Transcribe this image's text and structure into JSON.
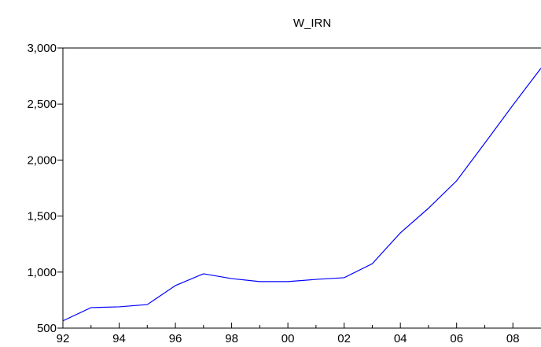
{
  "chart_data": {
    "type": "line",
    "title": "W_IRN",
    "x": [
      1992,
      1993,
      1994,
      1995,
      1996,
      1997,
      1998,
      1999,
      2000,
      2001,
      2002,
      2003,
      2004,
      2005,
      2006,
      2007,
      2008,
      2009
    ],
    "series": [
      {
        "name": "W_IRN",
        "color": "#0000ff",
        "values": [
          565,
          683,
          690,
          710,
          880,
          985,
          942,
          915,
          915,
          935,
          950,
          1075,
          1350,
          1570,
          1815,
          2150,
          2490,
          2820
        ]
      }
    ],
    "xlim": [
      1992,
      2009
    ],
    "xticks": [
      {
        "value": 1992,
        "label": "92"
      },
      {
        "value": 1994,
        "label": "94"
      },
      {
        "value": 1996,
        "label": "96"
      },
      {
        "value": 1998,
        "label": "98"
      },
      {
        "value": 2000,
        "label": "00"
      },
      {
        "value": 2002,
        "label": "02"
      },
      {
        "value": 2004,
        "label": "04"
      },
      {
        "value": 2006,
        "label": "06"
      },
      {
        "value": 2008,
        "label": "08"
      }
    ],
    "xminorticks": [
      1993,
      1995,
      1997,
      1999,
      2001,
      2003,
      2005,
      2007
    ],
    "ylim": [
      500,
      3000
    ],
    "yticks": [
      {
        "value": 500,
        "label": "500"
      },
      {
        "value": 1000,
        "label": "1,000"
      },
      {
        "value": 1500,
        "label": "1,500"
      },
      {
        "value": 2000,
        "label": "2,000"
      },
      {
        "value": 2500,
        "label": "2,500"
      },
      {
        "value": 3000,
        "label": "3,000"
      }
    ]
  }
}
